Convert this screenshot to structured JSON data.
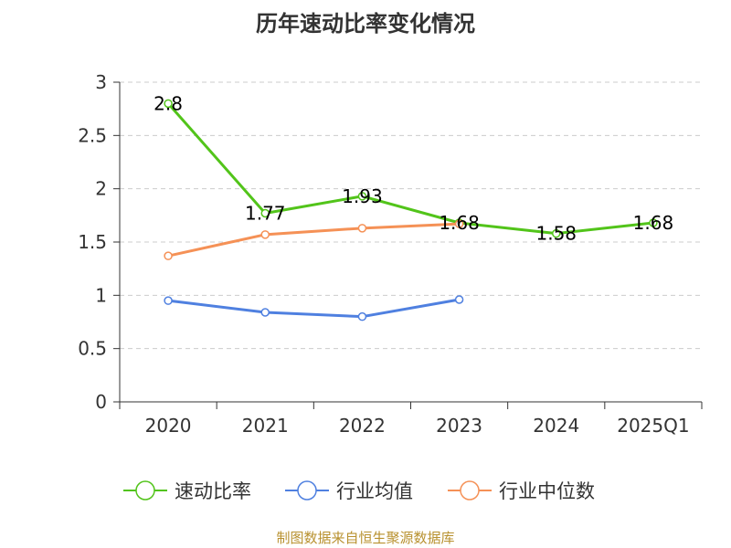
{
  "colors": {
    "green": "#52c41a",
    "blue": "#4f80e0",
    "orange": "#f59156",
    "grid": "#cccccc",
    "axis": "#333333"
  },
  "footer_text": "制图数据来自恒生聚源数据库",
  "chart_data": {
    "type": "line",
    "title": "历年速动比率变化情况",
    "categories": [
      "2020",
      "2021",
      "2022",
      "2023",
      "2024",
      "2025Q1"
    ],
    "ylim": [
      0,
      3
    ],
    "yticks": [
      "0",
      "0.5",
      "1",
      "1.5",
      "2",
      "2.5",
      "3"
    ],
    "series": [
      {
        "name": "速动比率",
        "color": "#52c41a",
        "values": [
          2.8,
          1.77,
          1.93,
          1.68,
          1.58,
          1.68
        ],
        "labels": [
          "2.8",
          "1.77",
          "1.93",
          "1.68",
          "1.58",
          "1.68"
        ],
        "show_labels": true
      },
      {
        "name": "行业均值",
        "color": "#4f80e0",
        "values": [
          0.95,
          0.84,
          0.8,
          0.96,
          null,
          null
        ],
        "show_labels": false
      },
      {
        "name": "行业中位数",
        "color": "#f59156",
        "values": [
          1.37,
          1.57,
          1.63,
          1.67,
          null,
          null
        ],
        "show_labels": false
      }
    ]
  }
}
